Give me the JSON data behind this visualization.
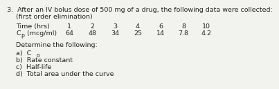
{
  "title_number": "3.",
  "title_text": "After an IV bolus dose of 500 mg of a drug, the following data were collected:",
  "subtitle": "(first order elimination)",
  "row1_label": "Time (hrs)",
  "row2_label_pre": "C",
  "row2_sub": "p",
  "row2_label_post": " (mcg/ml)",
  "time_values": [
    "1",
    "2",
    "3",
    "4",
    "6",
    "8",
    "10"
  ],
  "cp_values": [
    "64",
    "48",
    "34",
    "25",
    "14",
    "7.8",
    "4.2"
  ],
  "determine_text": "Determine the following:",
  "item_a_pre": "a)  C",
  "item_a_sub": "o",
  "item_b": "b)  Rate constant",
  "item_c": "c)  Half-life",
  "item_d": "d)  Total area under the curve",
  "bg_color": "#f2f2ee",
  "text_color": "#222222",
  "font_size": 6.8,
  "sub_font_size": 5.5
}
